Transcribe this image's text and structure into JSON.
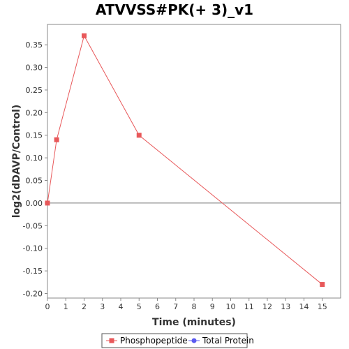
{
  "chart_data": {
    "type": "line",
    "title": "ATVVSS#PK(+ 3)_v1",
    "xlabel": "Time (minutes)",
    "ylabel": "log2(dDAVP/Control)",
    "xlim": [
      0,
      16
    ],
    "ylim": [
      -0.21,
      0.395
    ],
    "xticks": [
      0,
      1,
      2,
      3,
      4,
      5,
      6,
      7,
      8,
      9,
      10,
      11,
      12,
      13,
      14,
      15
    ],
    "yticks": [
      -0.2,
      -0.15,
      -0.1,
      -0.05,
      0.0,
      0.05,
      0.1,
      0.15,
      0.2,
      0.25,
      0.3,
      0.35
    ],
    "ytick_labels": [
      "-0.20",
      "-0.15",
      "-0.10",
      "-0.05",
      "0.00",
      "0.05",
      "0.10",
      "0.15",
      "0.20",
      "0.25",
      "0.30",
      "0.35"
    ],
    "zero_line": true,
    "grid": false,
    "legend_position": "bottom",
    "series": [
      {
        "name": "Phosphopeptide",
        "color": "#e8585a",
        "marker": "square",
        "x": [
          0,
          0.5,
          2,
          5,
          15
        ],
        "y": [
          0.0,
          0.14,
          0.37,
          0.15,
          -0.18
        ]
      },
      {
        "name": "Total Protein",
        "color": "#5b5bf0",
        "marker": "circle",
        "x": [],
        "y": []
      }
    ]
  }
}
